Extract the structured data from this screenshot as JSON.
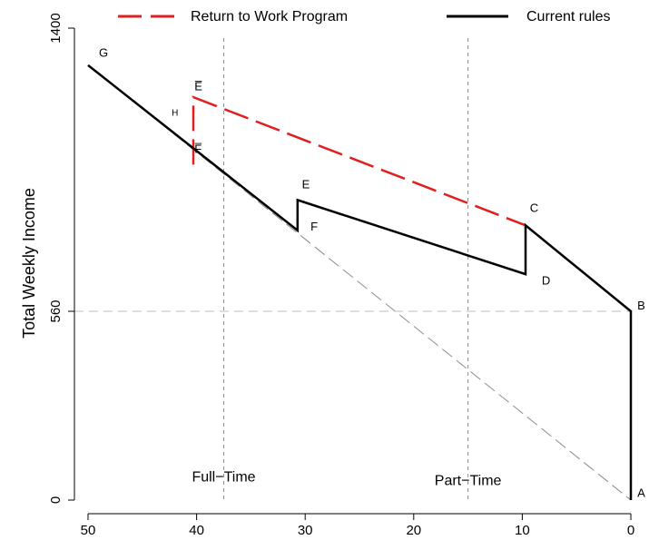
{
  "chart_data": {
    "type": "line",
    "title": "",
    "xlabel": "",
    "ylabel": "Total Weekly Income",
    "xlim": [
      50,
      0
    ],
    "ylim": [
      0,
      1400
    ],
    "x_ticks": [
      50,
      40,
      30,
      20,
      10,
      0
    ],
    "y_ticks": [
      0,
      560,
      1400
    ],
    "x_tick_labels": [
      "50",
      "40",
      "30",
      "20",
      "10",
      "0"
    ],
    "y_tick_labels": [
      "0",
      "560",
      "1400"
    ],
    "grid": false,
    "legend_position": "top",
    "colors": {
      "return_to_work": "#e02020",
      "current_rules": "#000000",
      "reference": "#8c8c8c"
    },
    "series": [
      {
        "name": "Return to Work Program",
        "style": "dashed",
        "color": "#e02020",
        "points": [
          [
            40.3,
            995
          ],
          [
            40.3,
            1195
          ],
          [
            9.7,
            815
          ]
        ]
      },
      {
        "name": "Current rules",
        "style": "solid",
        "color": "#000000",
        "points": [
          [
            50,
            1290
          ],
          [
            30.7,
            800
          ],
          [
            30.7,
            890
          ],
          [
            9.7,
            670
          ],
          [
            9.7,
            815
          ],
          [
            0,
            560
          ],
          [
            0,
            0
          ]
        ]
      }
    ],
    "reference_lines": {
      "diagonal": [
        [
          50,
          1290
        ],
        [
          0,
          0
        ]
      ],
      "horizontal_y": 560,
      "vertical_x": [
        37.5,
        15
      ]
    },
    "region_labels": [
      {
        "text": "Full−Time",
        "x": 37.5,
        "y": 55
      },
      {
        "text": "Part−Time",
        "x": 15,
        "y": 45
      }
    ],
    "point_labels": [
      {
        "text": "G",
        "x": 49,
        "y": 1315,
        "small": false
      },
      {
        "text": "E̅",
        "x": 40.2,
        "y": 1215,
        "small": false
      },
      {
        "text": "H",
        "x": 42.3,
        "y": 1140,
        "small": true
      },
      {
        "text": "F̅",
        "x": 40.2,
        "y": 1030,
        "small": false
      },
      {
        "text": "E",
        "x": 30.3,
        "y": 925,
        "small": false
      },
      {
        "text": "F",
        "x": 29.5,
        "y": 800,
        "small": false
      },
      {
        "text": "C",
        "x": 9.3,
        "y": 855,
        "small": false
      },
      {
        "text": "D",
        "x": 8.2,
        "y": 640,
        "small": false
      },
      {
        "text": "B",
        "x": -0.6,
        "y": 565,
        "small": false
      },
      {
        "text": "A",
        "x": -0.6,
        "y": 10,
        "small": false
      }
    ]
  }
}
